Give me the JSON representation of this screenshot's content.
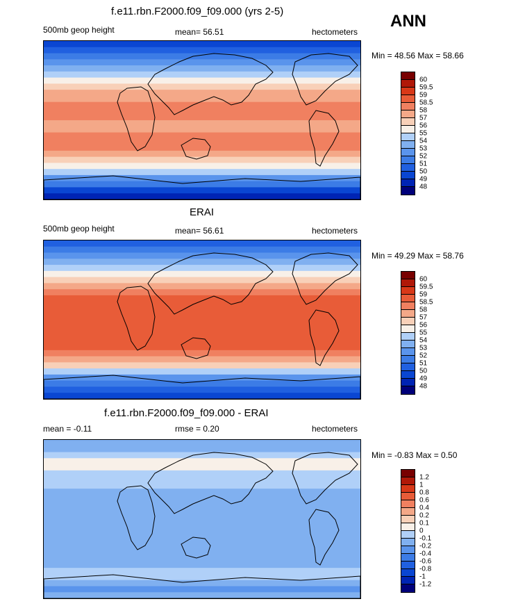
{
  "season_label": "ANN",
  "chart_data": [
    {
      "type": "heatmap",
      "title": "f.e11.rbn.F2000.f09_f09.000 (yrs 2-5)",
      "left_label": "500mb geop height",
      "center_label": "mean=  56.51",
      "right_label": "hectometers",
      "min_max": "Min =  48.56 Max =  58.66",
      "levels": [
        "48",
        "49",
        "50",
        "51",
        "52",
        "53",
        "54",
        "55",
        "56",
        "57",
        "58",
        "58.5",
        "59",
        "59.5",
        "60"
      ],
      "colors": [
        "#00007a",
        "#0024b4",
        "#0a46d2",
        "#2060e0",
        "#3c7ce6",
        "#5a94ec",
        "#80b0f0",
        "#b0d0f8",
        "#f8f0e8",
        "#f8d0b8",
        "#f4a888",
        "#f08060",
        "#e85c38",
        "#d83818",
        "#b01808",
        "#780000"
      ],
      "bands": [
        2,
        3,
        4,
        5,
        6,
        7,
        8,
        9,
        10,
        10,
        11,
        11,
        11,
        10,
        10,
        11,
        11,
        11,
        10,
        9,
        8,
        7,
        5,
        4,
        2,
        1
      ]
    },
    {
      "type": "heatmap",
      "title": "ERAI",
      "left_label": "500mb geop height",
      "center_label": "mean=  56.61",
      "right_label": "hectometers",
      "min_max": "Min =  49.29 Max =  58.76",
      "levels": [
        "48",
        "49",
        "50",
        "51",
        "52",
        "53",
        "54",
        "55",
        "56",
        "57",
        "58",
        "58.5",
        "59",
        "59.5",
        "60"
      ],
      "colors": [
        "#00007a",
        "#0024b4",
        "#0a46d2",
        "#2060e0",
        "#3c7ce6",
        "#5a94ec",
        "#80b0f0",
        "#b0d0f8",
        "#f8f0e8",
        "#f8d0b8",
        "#f4a888",
        "#f08060",
        "#e85c38",
        "#d83818",
        "#b01808",
        "#780000"
      ],
      "bands": [
        3,
        4,
        5,
        6,
        7,
        8,
        9,
        10,
        11,
        12,
        12,
        12,
        12,
        12,
        12,
        12,
        12,
        12,
        11,
        10,
        9,
        7,
        5,
        4,
        3,
        2
      ]
    },
    {
      "type": "heatmap",
      "title": "f.e11.rbn.F2000.f09_f09.000 - ERAI",
      "left_label": "mean =  -0.11",
      "center_label": "rmse =   0.20",
      "right_label": "hectometers",
      "min_max": "Min =  -0.83 Max =   0.50",
      "levels": [
        "-1.2",
        "-1",
        "-0.8",
        "-0.6",
        "-0.4",
        "-0.2",
        "-0.1",
        "0",
        "0.1",
        "0.2",
        "0.4",
        "0.6",
        "0.8",
        "1",
        "1.2"
      ],
      "colors": [
        "#00007a",
        "#0024b4",
        "#0a46d2",
        "#2060e0",
        "#3c7ce6",
        "#5a94ec",
        "#80b0f0",
        "#b0d0f8",
        "#f8f0e8",
        "#f8d0b8",
        "#f4a888",
        "#f08060",
        "#e85c38",
        "#d83818",
        "#b01808",
        "#780000"
      ],
      "bands": [
        6,
        6,
        7,
        8,
        8,
        7,
        7,
        7,
        6,
        6,
        6,
        6,
        6,
        6,
        6,
        6,
        6,
        6,
        6,
        6,
        6,
        7,
        7,
        6,
        5,
        6
      ]
    }
  ]
}
